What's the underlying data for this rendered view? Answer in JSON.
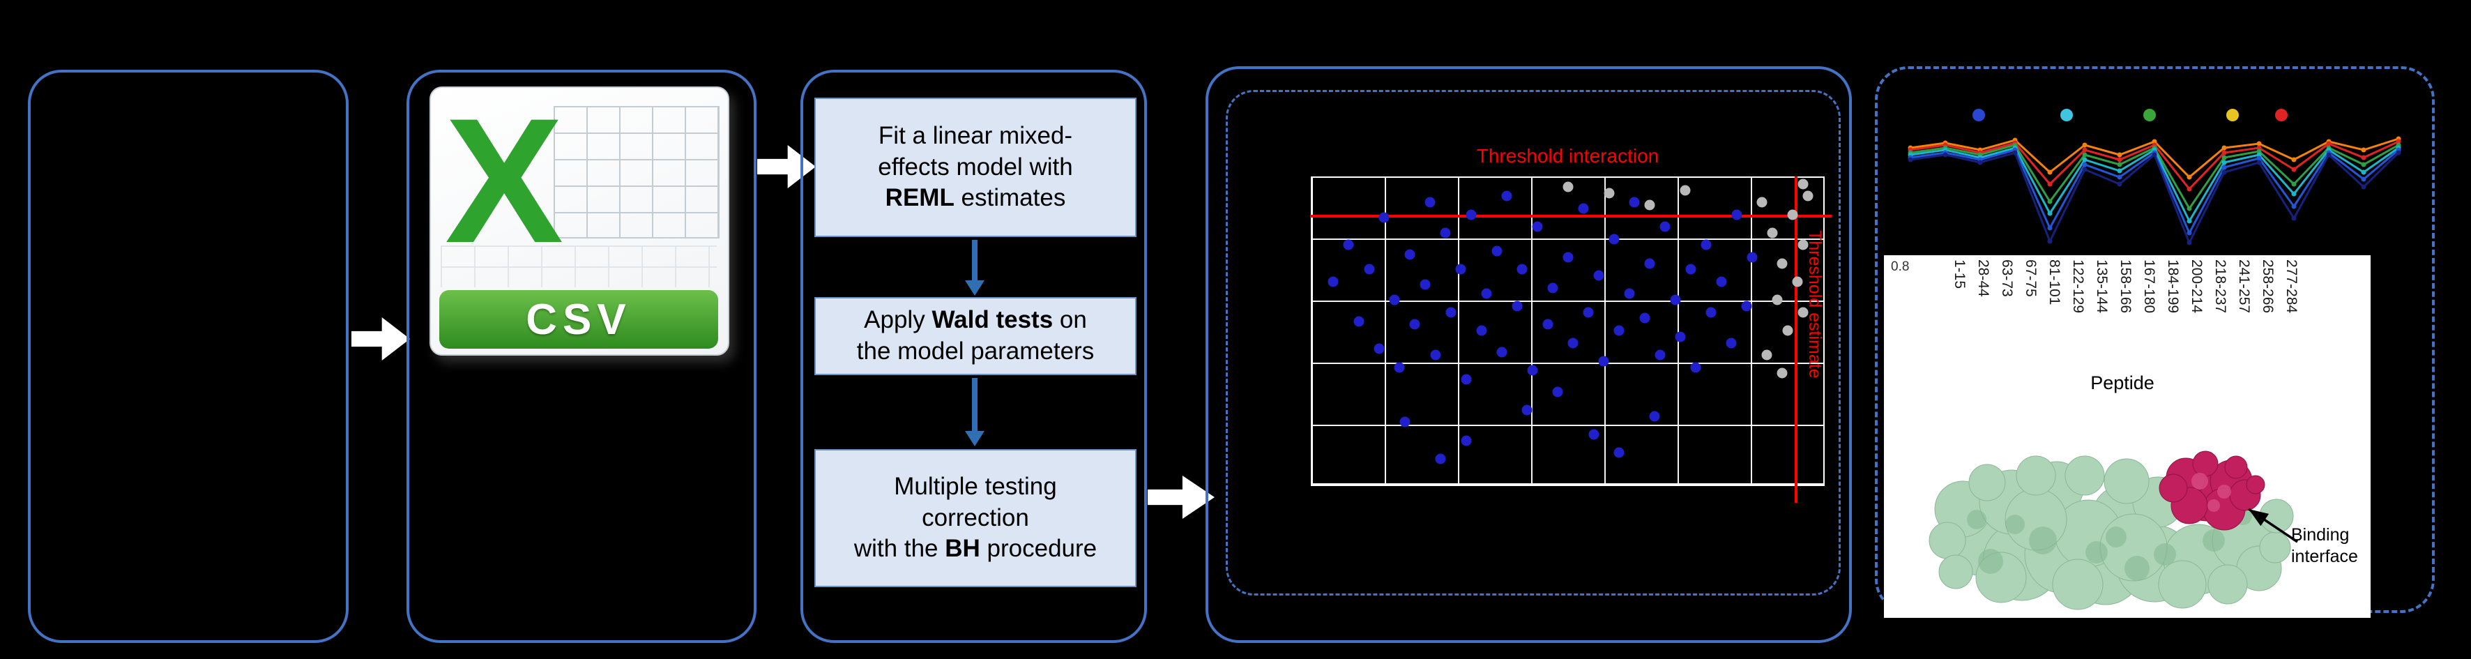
{
  "csv": {
    "letter": "X",
    "label": "CSV"
  },
  "process": {
    "arrow_color": "#2f6fb5",
    "boxes": [
      {
        "name": "reml-step",
        "lines": [
          [
            {
              "t": "Fit a linear mixed-"
            }
          ],
          [
            {
              "t": "effects model with"
            }
          ],
          [
            {
              "t": "REML",
              "b": true
            },
            {
              "t": " estimates"
            }
          ]
        ]
      },
      {
        "name": "wald-step",
        "lines": [
          [
            {
              "t": "Apply "
            },
            {
              "t": "Wald tests",
              "b": true
            },
            {
              "t": " on"
            }
          ],
          [
            {
              "t": "the model parameters"
            }
          ]
        ]
      },
      {
        "name": "bh-step",
        "lines": [
          [
            {
              "t": "Multiple testing"
            }
          ],
          [
            {
              "t": "correction"
            }
          ],
          [
            {
              "t": "with the "
            },
            {
              "t": "BH",
              "b": true
            },
            {
              "t": " procedure"
            }
          ]
        ]
      }
    ]
  },
  "charts": {
    "scatter": {
      "type": "scatter",
      "title": "Threshold interaction",
      "threshold_estimate_label": "Threshold estimate",
      "threshold_color": "#ff0000",
      "h_threshold_pct": 12,
      "v_threshold_pct": 94.4,
      "point_colors": {
        "significant": "#2020cc",
        "not_significant": "#b9b9b9"
      },
      "points": [
        [
          4,
          34,
          0
        ],
        [
          7,
          22,
          0
        ],
        [
          9,
          47,
          0
        ],
        [
          11,
          30,
          0
        ],
        [
          13,
          56,
          0
        ],
        [
          14,
          13,
          0
        ],
        [
          16,
          40,
          0
        ],
        [
          17,
          62,
          0
        ],
        [
          19,
          25,
          0
        ],
        [
          20,
          48,
          0
        ],
        [
          22,
          35,
          0
        ],
        [
          23,
          8,
          0
        ],
        [
          24,
          58,
          0
        ],
        [
          26,
          18,
          0
        ],
        [
          27,
          44,
          0
        ],
        [
          29,
          30,
          0
        ],
        [
          30,
          66,
          0
        ],
        [
          31,
          12,
          0
        ],
        [
          33,
          50,
          0
        ],
        [
          34,
          38,
          0
        ],
        [
          36,
          24,
          0
        ],
        [
          37,
          57,
          0
        ],
        [
          38,
          6,
          0
        ],
        [
          40,
          42,
          0
        ],
        [
          41,
          30,
          0
        ],
        [
          43,
          63,
          0
        ],
        [
          44,
          16,
          0
        ],
        [
          46,
          48,
          0
        ],
        [
          47,
          36,
          0
        ],
        [
          48,
          70,
          0
        ],
        [
          50,
          26,
          0
        ],
        [
          51,
          54,
          0
        ],
        [
          53,
          10,
          0
        ],
        [
          54,
          44,
          0
        ],
        [
          56,
          32,
          0
        ],
        [
          57,
          60,
          0
        ],
        [
          59,
          20,
          0
        ],
        [
          60,
          50,
          0
        ],
        [
          62,
          38,
          0
        ],
        [
          63,
          8,
          0
        ],
        [
          65,
          46,
          0
        ],
        [
          66,
          28,
          0
        ],
        [
          68,
          58,
          0
        ],
        [
          69,
          16,
          0
        ],
        [
          71,
          40,
          0
        ],
        [
          72,
          52,
          0
        ],
        [
          74,
          30,
          0
        ],
        [
          75,
          62,
          0
        ],
        [
          77,
          22,
          0
        ],
        [
          78,
          44,
          0
        ],
        [
          80,
          34,
          0
        ],
        [
          82,
          54,
          0
        ],
        [
          83,
          12,
          0
        ],
        [
          85,
          42,
          0
        ],
        [
          86,
          26,
          0
        ],
        [
          18,
          80,
          0
        ],
        [
          30,
          86,
          0
        ],
        [
          42,
          76,
          0
        ],
        [
          55,
          84,
          0
        ],
        [
          67,
          78,
          0
        ],
        [
          25,
          92,
          0
        ],
        [
          60,
          90,
          0
        ],
        [
          88,
          8,
          1
        ],
        [
          90,
          18,
          1
        ],
        [
          92,
          28,
          1
        ],
        [
          91,
          40,
          1
        ],
        [
          94,
          12,
          1
        ],
        [
          93,
          50,
          1
        ],
        [
          95,
          34,
          1
        ],
        [
          96,
          22,
          1
        ],
        [
          89,
          58,
          1
        ],
        [
          97,
          6,
          1
        ],
        [
          92,
          64,
          1
        ],
        [
          96,
          44,
          1
        ],
        [
          58,
          5,
          1
        ],
        [
          66,
          9,
          1
        ],
        [
          73,
          4,
          1
        ],
        [
          50,
          3,
          1
        ],
        [
          96,
          2,
          1
        ]
      ]
    },
    "profile": {
      "type": "line",
      "y_tick": "0.8",
      "x_axis_title": "Peptide",
      "x_labels": [
        "1-15",
        "28-44",
        "63-73",
        "67-75",
        "81-101",
        "122-129",
        "135-144",
        "158-166",
        "167-180",
        "184-199",
        "200-214",
        "218-237",
        "241-257",
        "258-266",
        "277-284"
      ],
      "series": [
        {
          "name": "orange",
          "color": "#f5820b",
          "values": [
            0.82,
            0.86,
            0.8,
            0.88,
            0.62,
            0.84,
            0.76,
            0.87,
            0.58,
            0.82,
            0.85,
            0.72,
            0.87,
            0.8,
            0.89
          ]
        },
        {
          "name": "red",
          "color": "#e02424",
          "values": [
            0.8,
            0.84,
            0.78,
            0.86,
            0.52,
            0.8,
            0.72,
            0.84,
            0.48,
            0.78,
            0.82,
            0.64,
            0.85,
            0.74,
            0.87
          ]
        },
        {
          "name": "green",
          "color": "#2f9e44",
          "values": [
            0.78,
            0.82,
            0.76,
            0.84,
            0.38,
            0.76,
            0.68,
            0.82,
            0.32,
            0.74,
            0.79,
            0.52,
            0.82,
            0.68,
            0.84
          ]
        },
        {
          "name": "cyan",
          "color": "#1cb5c9",
          "values": [
            0.76,
            0.8,
            0.74,
            0.82,
            0.28,
            0.72,
            0.63,
            0.8,
            0.22,
            0.7,
            0.76,
            0.44,
            0.8,
            0.62,
            0.82
          ]
        },
        {
          "name": "blue",
          "color": "#2356d6",
          "values": [
            0.74,
            0.78,
            0.72,
            0.8,
            0.16,
            0.68,
            0.58,
            0.78,
            0.12,
            0.66,
            0.73,
            0.34,
            0.78,
            0.56,
            0.8
          ]
        },
        {
          "name": "navy",
          "color": "#15217d",
          "values": [
            0.72,
            0.76,
            0.7,
            0.78,
            0.05,
            0.64,
            0.52,
            0.76,
            0.04,
            0.62,
            0.7,
            0.24,
            0.76,
            0.5,
            0.78
          ]
        }
      ],
      "legend_dots": [
        {
          "x": 118,
          "color": "#2a47d4"
        },
        {
          "x": 244,
          "color": "#3ec6e0"
        },
        {
          "x": 363,
          "color": "#3aa63a"
        },
        {
          "x": 482,
          "color": "#e8c422"
        },
        {
          "x": 552,
          "color": "#e02424"
        }
      ],
      "annotation": [
        "Binding",
        "interface"
      ]
    }
  }
}
